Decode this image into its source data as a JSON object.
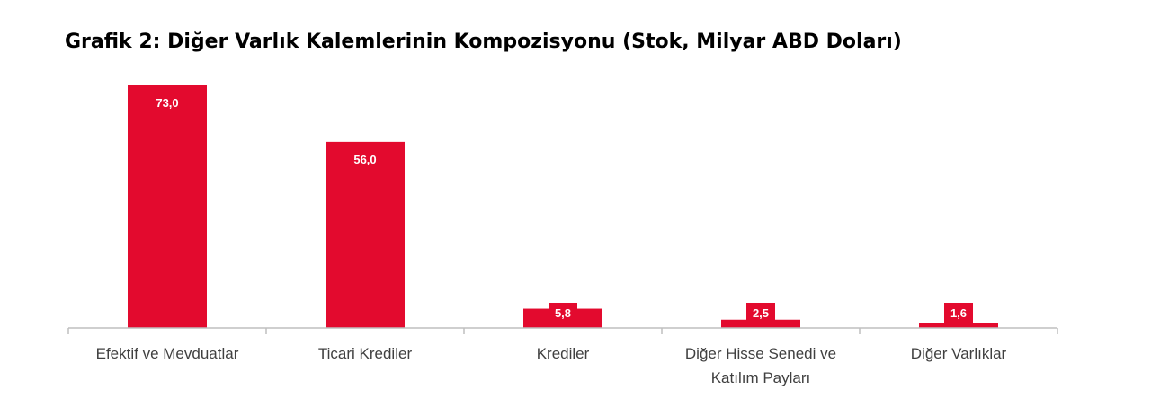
{
  "chart_data": {
    "type": "bar",
    "title": "Grafik 2: Diğer Varlık Kalemlerinin Kompozisyonu (Stok, Milyar ABD Doları)",
    "categories": [
      [
        "Efektif ve Mevduatlar"
      ],
      [
        "Ticari Krediler"
      ],
      [
        "Krediler"
      ],
      [
        "Diğer Hisse Senedi ve",
        "Katılım Payları"
      ],
      [
        "Diğer Varlıklar"
      ]
    ],
    "values": [
      73.0,
      56.0,
      5.8,
      2.5,
      1.6
    ],
    "value_labels": [
      "73,0",
      "56,0",
      "5,8",
      "2,5",
      "1,6"
    ],
    "xlabel": "",
    "ylabel": "",
    "ylim": [
      0,
      73
    ],
    "grid": false,
    "legend": "none",
    "bar_color": "#e30a2e",
    "label_color": "#ffffff",
    "axis_color": "#bfbfbf",
    "text_color": "#404040"
  }
}
